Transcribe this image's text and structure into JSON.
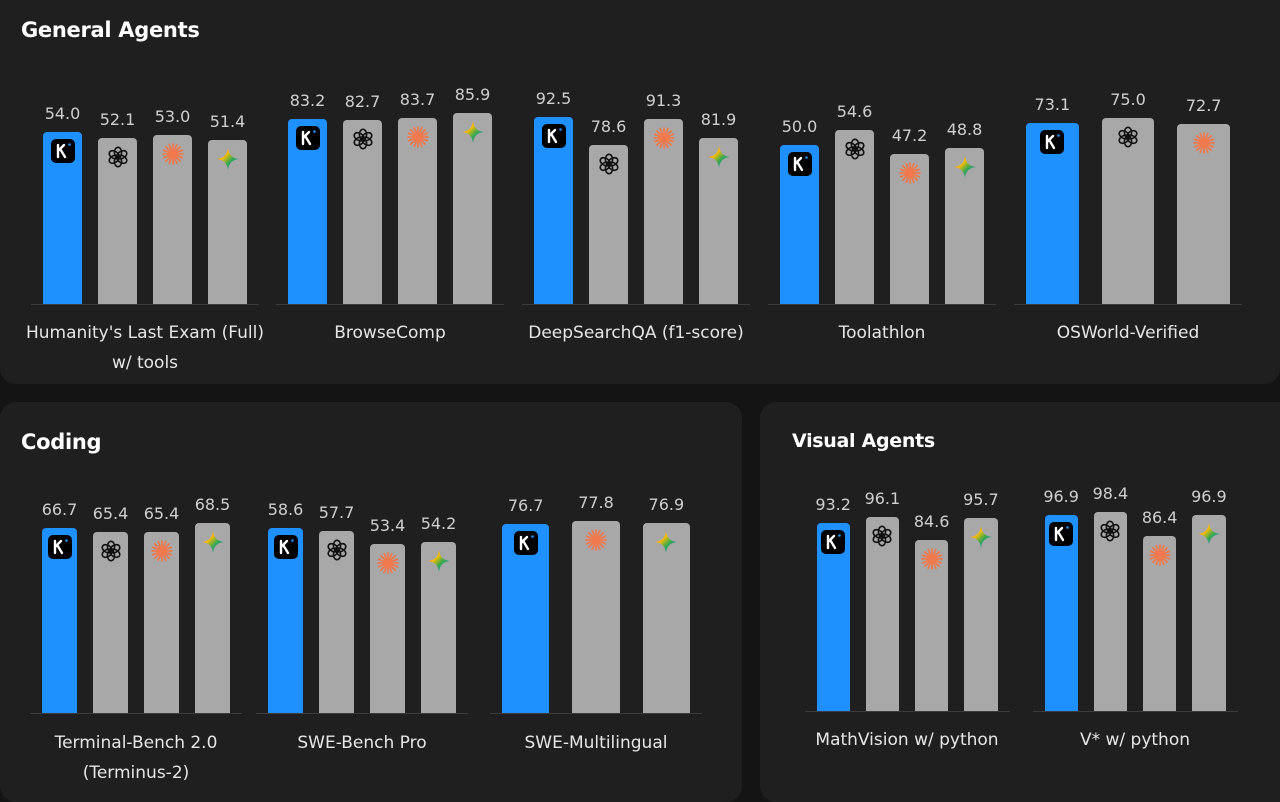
{
  "colors": {
    "kimi": "#1e90ff",
    "other": "#a8a8a8",
    "claude": "#f07a4e"
  },
  "chart_data": [
    {
      "type": "bar",
      "title": "General Agents",
      "groups": [
        {
          "label": [
            "Humanity's Last Exam (Full)",
            "w/ tools"
          ],
          "bars": [
            {
              "model": "kimi",
              "value": 54.0,
              "text": "54.0"
            },
            {
              "model": "openai",
              "value": 52.1,
              "text": "52.1"
            },
            {
              "model": "claude",
              "value": 53.0,
              "text": "53.0"
            },
            {
              "model": "gemini",
              "value": 51.4,
              "text": "51.4"
            }
          ]
        },
        {
          "label": [
            "BrowseComp"
          ],
          "bars": [
            {
              "model": "kimi",
              "value": 83.2,
              "text": "83.2"
            },
            {
              "model": "openai",
              "value": 82.7,
              "text": "82.7"
            },
            {
              "model": "claude",
              "value": 83.7,
              "text": "83.7"
            },
            {
              "model": "gemini",
              "value": 85.9,
              "text": "85.9"
            }
          ]
        },
        {
          "label": [
            "DeepSearchQA (f1-score)"
          ],
          "bars": [
            {
              "model": "kimi",
              "value": 92.5,
              "text": "92.5"
            },
            {
              "model": "openai",
              "value": 78.6,
              "text": "78.6"
            },
            {
              "model": "claude",
              "value": 91.3,
              "text": "91.3"
            },
            {
              "model": "gemini",
              "value": 81.9,
              "text": "81.9"
            }
          ]
        },
        {
          "label": [
            "Toolathlon"
          ],
          "bars": [
            {
              "model": "kimi",
              "value": 50.0,
              "text": "50.0"
            },
            {
              "model": "openai",
              "value": 54.6,
              "text": "54.6"
            },
            {
              "model": "claude",
              "value": 47.2,
              "text": "47.2"
            },
            {
              "model": "gemini",
              "value": 48.8,
              "text": "48.8"
            }
          ]
        },
        {
          "label": [
            "OSWorld-Verified"
          ],
          "bars": [
            {
              "model": "kimi",
              "value": 73.1,
              "text": "73.1"
            },
            {
              "model": "openai",
              "value": 75.0,
              "text": "75.0"
            },
            {
              "model": "claude",
              "value": 72.7,
              "text": "72.7"
            }
          ]
        }
      ]
    },
    {
      "type": "bar",
      "title": "Coding",
      "groups": [
        {
          "label": [
            "Terminal-Bench 2.0",
            "(Terminus-2)"
          ],
          "bars": [
            {
              "model": "kimi",
              "value": 66.7,
              "text": "66.7"
            },
            {
              "model": "openai",
              "value": 65.4,
              "text": "65.4"
            },
            {
              "model": "claude",
              "value": 65.4,
              "text": "65.4"
            },
            {
              "model": "gemini",
              "value": 68.5,
              "text": "68.5"
            }
          ]
        },
        {
          "label": [
            "SWE-Bench Pro"
          ],
          "bars": [
            {
              "model": "kimi",
              "value": 58.6,
              "text": "58.6"
            },
            {
              "model": "openai",
              "value": 57.7,
              "text": "57.7"
            },
            {
              "model": "claude",
              "value": 53.4,
              "text": "53.4"
            },
            {
              "model": "gemini",
              "value": 54.2,
              "text": "54.2"
            }
          ]
        },
        {
          "label": [
            "SWE-Multilingual"
          ],
          "bars": [
            {
              "model": "kimi",
              "value": 76.7,
              "text": "76.7"
            },
            {
              "model": "claude",
              "value": 77.8,
              "text": "77.8"
            },
            {
              "model": "gemini",
              "value": 76.9,
              "text": "76.9"
            }
          ]
        }
      ]
    },
    {
      "type": "bar",
      "title": "Visual Agents",
      "groups": [
        {
          "label": [
            "MathVision w/ python"
          ],
          "bars": [
            {
              "model": "kimi",
              "value": 93.2,
              "text": "93.2"
            },
            {
              "model": "openai",
              "value": 96.1,
              "text": "96.1"
            },
            {
              "model": "claude",
              "value": 84.6,
              "text": "84.6"
            },
            {
              "model": "gemini",
              "value": 95.7,
              "text": "95.7"
            }
          ]
        },
        {
          "label": [
            "V* w/ python"
          ],
          "bars": [
            {
              "model": "kimi",
              "value": 96.9,
              "text": "96.9"
            },
            {
              "model": "openai",
              "value": 98.4,
              "text": "98.4"
            },
            {
              "model": "claude",
              "value": 86.4,
              "text": "86.4"
            },
            {
              "model": "gemini",
              "value": 96.9,
              "text": "96.9"
            }
          ]
        }
      ]
    }
  ]
}
